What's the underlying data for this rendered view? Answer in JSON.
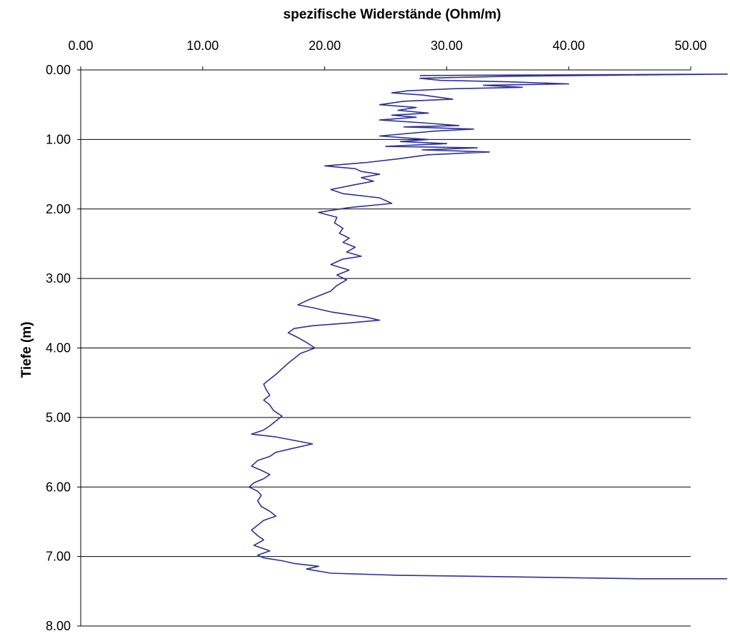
{
  "chart_data": {
    "type": "line",
    "title": "",
    "xlabel": "spezifische Widerstände (Ohm/m)",
    "ylabel": "Tiefe (m)",
    "x_axis_position": "top",
    "y_axis_inverted": true,
    "xlim": [
      0,
      50
    ],
    "ylim": [
      0,
      8
    ],
    "x_ticks": [
      "0.00",
      "10.00",
      "20.00",
      "30.00",
      "40.00",
      "50.00"
    ],
    "y_ticks": [
      "0.00",
      "1.00",
      "2.00",
      "3.00",
      "4.00",
      "5.00",
      "6.00",
      "7.00",
      "8.00"
    ],
    "x_tick_values": [
      0,
      10,
      20,
      30,
      40,
      50
    ],
    "y_tick_values": [
      0,
      1,
      2,
      3,
      4,
      5,
      6,
      7,
      8
    ],
    "grid": "horizontal",
    "legend": "none",
    "line_color": "#2e3192",
    "series": [
      {
        "points": [
          [
            27.8,
            0.08
          ],
          [
            53.0,
            0.06
          ],
          [
            35.2,
            0.09
          ],
          [
            27.8,
            0.12
          ],
          [
            29.5,
            0.15
          ],
          [
            35.0,
            0.17
          ],
          [
            40.0,
            0.2
          ],
          [
            33.0,
            0.22
          ],
          [
            36.2,
            0.25
          ],
          [
            30.5,
            0.27
          ],
          [
            26.8,
            0.3
          ],
          [
            25.5,
            0.33
          ],
          [
            28.0,
            0.36
          ],
          [
            30.5,
            0.42
          ],
          [
            26.5,
            0.45
          ],
          [
            24.5,
            0.5
          ],
          [
            27.5,
            0.54
          ],
          [
            26.0,
            0.58
          ],
          [
            28.5,
            0.62
          ],
          [
            25.5,
            0.65
          ],
          [
            27.5,
            0.68
          ],
          [
            24.5,
            0.72
          ],
          [
            28.0,
            0.76
          ],
          [
            31.0,
            0.8
          ],
          [
            26.5,
            0.82
          ],
          [
            32.2,
            0.85
          ],
          [
            29.0,
            0.88
          ],
          [
            24.5,
            0.95
          ],
          [
            28.5,
            1.0
          ],
          [
            26.2,
            1.03
          ],
          [
            30.0,
            1.06
          ],
          [
            25.0,
            1.1
          ],
          [
            32.5,
            1.12
          ],
          [
            28.0,
            1.15
          ],
          [
            33.5,
            1.18
          ],
          [
            28.5,
            1.22
          ],
          [
            26.0,
            1.28
          ],
          [
            23.5,
            1.33
          ],
          [
            20.0,
            1.38
          ],
          [
            22.5,
            1.42
          ],
          [
            23.0,
            1.46
          ],
          [
            24.5,
            1.5
          ],
          [
            23.0,
            1.55
          ],
          [
            24.0,
            1.6
          ],
          [
            22.5,
            1.65
          ],
          [
            20.5,
            1.72
          ],
          [
            21.5,
            1.78
          ],
          [
            24.5,
            1.84
          ],
          [
            25.5,
            1.92
          ],
          [
            22.0,
            1.98
          ],
          [
            19.5,
            2.05
          ],
          [
            21.0,
            2.12
          ],
          [
            20.8,
            2.2
          ],
          [
            21.5,
            2.28
          ],
          [
            21.2,
            2.35
          ],
          [
            22.0,
            2.42
          ],
          [
            21.5,
            2.48
          ],
          [
            22.5,
            2.55
          ],
          [
            21.8,
            2.62
          ],
          [
            23.0,
            2.68
          ],
          [
            21.5,
            2.72
          ],
          [
            20.5,
            2.8
          ],
          [
            22.0,
            2.88
          ],
          [
            21.0,
            2.95
          ],
          [
            21.8,
            3.02
          ],
          [
            21.0,
            3.1
          ],
          [
            20.5,
            3.18
          ],
          [
            19.5,
            3.25
          ],
          [
            18.5,
            3.32
          ],
          [
            17.8,
            3.38
          ],
          [
            19.0,
            3.42
          ],
          [
            20.5,
            3.48
          ],
          [
            22.0,
            3.52
          ],
          [
            23.5,
            3.56
          ],
          [
            24.5,
            3.6
          ],
          [
            22.0,
            3.64
          ],
          [
            19.0,
            3.68
          ],
          [
            17.5,
            3.72
          ],
          [
            17.0,
            3.78
          ],
          [
            17.8,
            3.85
          ],
          [
            18.5,
            3.92
          ],
          [
            19.2,
            4.0
          ],
          [
            18.0,
            4.08
          ],
          [
            17.5,
            4.15
          ],
          [
            17.0,
            4.22
          ],
          [
            16.5,
            4.3
          ],
          [
            16.0,
            4.38
          ],
          [
            15.5,
            4.45
          ],
          [
            15.0,
            4.52
          ],
          [
            15.2,
            4.6
          ],
          [
            15.5,
            4.68
          ],
          [
            15.0,
            4.75
          ],
          [
            15.5,
            4.82
          ],
          [
            15.8,
            4.9
          ],
          [
            16.5,
            4.98
          ],
          [
            16.0,
            5.05
          ],
          [
            15.5,
            5.12
          ],
          [
            15.0,
            5.18
          ],
          [
            14.0,
            5.24
          ],
          [
            16.0,
            5.28
          ],
          [
            17.5,
            5.33
          ],
          [
            19.0,
            5.38
          ],
          [
            17.5,
            5.44
          ],
          [
            16.0,
            5.5
          ],
          [
            15.5,
            5.56
          ],
          [
            14.5,
            5.62
          ],
          [
            14.0,
            5.7
          ],
          [
            14.8,
            5.76
          ],
          [
            15.5,
            5.82
          ],
          [
            15.0,
            5.88
          ],
          [
            14.2,
            5.94
          ],
          [
            13.8,
            6.0
          ],
          [
            14.5,
            6.06
          ],
          [
            14.8,
            6.12
          ],
          [
            14.5,
            6.2
          ],
          [
            14.8,
            6.28
          ],
          [
            15.5,
            6.35
          ],
          [
            16.0,
            6.42
          ],
          [
            15.0,
            6.48
          ],
          [
            14.5,
            6.55
          ],
          [
            14.0,
            6.62
          ],
          [
            14.5,
            6.7
          ],
          [
            15.0,
            6.76
          ],
          [
            14.2,
            6.84
          ],
          [
            15.5,
            6.92
          ],
          [
            14.5,
            6.98
          ],
          [
            15.0,
            7.02
          ],
          [
            16.5,
            7.06
          ],
          [
            17.5,
            7.1
          ],
          [
            19.5,
            7.14
          ],
          [
            18.5,
            7.18
          ],
          [
            20.5,
            7.24
          ],
          [
            26.0,
            7.27
          ],
          [
            30.5,
            7.28
          ],
          [
            45.8,
            7.32
          ],
          [
            53.0,
            7.32
          ]
        ]
      }
    ]
  }
}
